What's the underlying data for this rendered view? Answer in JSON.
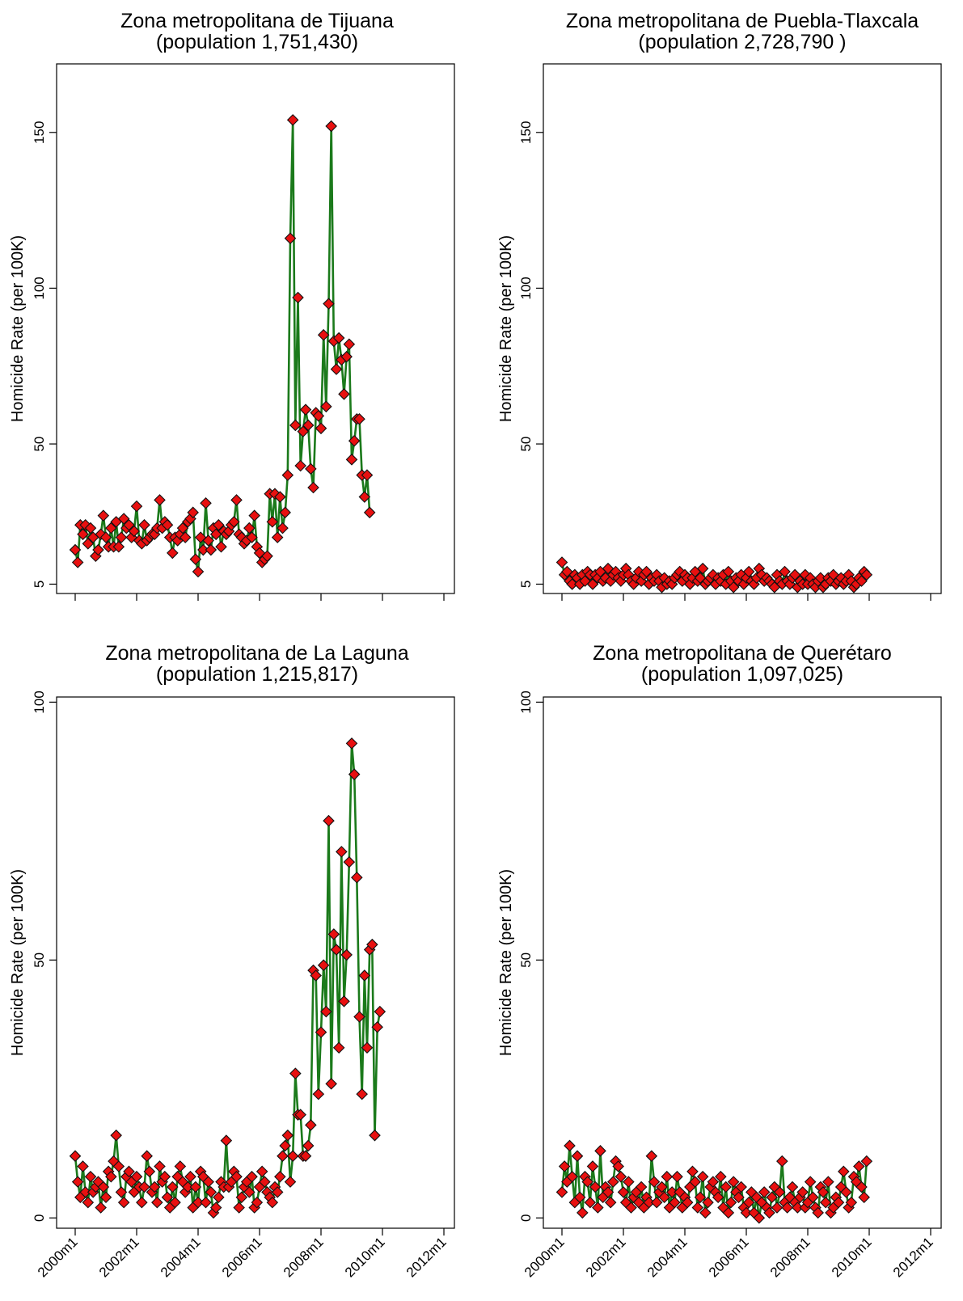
{
  "chart_data": [
    {
      "type": "line",
      "title": "Zona metropolitana de Tijuana",
      "subtitle": "(population  1,751,430)",
      "xlabel": "",
      "ylabel": "Homicide Rate (per 100K)",
      "x_tick_labels": [
        "2000m1",
        "2002m1",
        "2004m1",
        "2006m1",
        "2008m1",
        "2010m1",
        "2012m1"
      ],
      "y_ticks": [
        5,
        50,
        100,
        150
      ],
      "ylim": [
        2,
        172
      ],
      "x_start": "2000m1",
      "markers": "diamond",
      "grid": false,
      "colors": {
        "line": "#1b7a1b",
        "marker": "#e81010"
      },
      "series": [
        {
          "values": [
            16,
            12,
            24,
            21,
            24,
            18,
            23,
            20,
            14,
            16,
            21,
            27,
            20,
            17,
            23,
            17,
            25,
            17,
            20,
            26,
            23,
            24,
            20,
            22,
            30,
            19,
            18,
            24,
            19,
            20,
            21,
            21,
            23,
            32,
            23,
            25,
            24,
            20,
            15,
            20,
            19,
            21,
            23,
            20,
            25,
            26,
            28,
            13,
            9,
            20,
            16,
            31,
            19,
            16,
            23,
            21,
            24,
            17,
            22,
            21,
            22,
            24,
            25,
            32,
            21,
            20,
            18,
            19,
            23,
            20,
            27,
            17,
            15,
            12,
            13,
            14,
            34,
            25,
            34,
            20,
            33,
            23,
            28,
            40,
            116,
            154,
            56,
            97,
            43,
            54,
            61,
            56,
            42,
            36,
            60,
            59,
            55,
            85,
            62,
            95,
            152,
            83,
            74,
            84,
            77,
            66,
            78,
            82,
            45,
            51,
            58,
            58,
            40,
            33,
            40,
            28
          ]
        }
      ]
    },
    {
      "type": "line",
      "title": "Zona metropolitana de Puebla-Tlaxcala",
      "subtitle": "(population 2,728,790 )",
      "xlabel": "",
      "ylabel": "Homicide Rate (per 100K)",
      "x_tick_labels": [
        "2000m1",
        "2002m1",
        "2004m1",
        "2006m1",
        "2008m1",
        "2010m1",
        "2012m1"
      ],
      "y_ticks": [
        5,
        50,
        100,
        150
      ],
      "ylim": [
        2,
        172
      ],
      "x_start": "2000m1",
      "markers": "diamond",
      "grid": false,
      "colors": {
        "line": "#1b7a1b",
        "marker": "#e81010"
      },
      "series": [
        {
          "values": [
            12,
            8,
            9,
            6,
            5,
            8,
            7,
            5,
            8,
            6,
            9,
            8,
            5,
            8,
            7,
            9,
            6,
            7,
            10,
            6,
            8,
            9,
            7,
            6,
            8,
            10,
            8,
            6,
            5,
            7,
            9,
            6,
            8,
            9,
            5,
            7,
            6,
            8,
            6,
            4,
            7,
            5,
            6,
            5,
            7,
            8,
            9,
            6,
            8,
            7,
            5,
            7,
            9,
            6,
            7,
            10,
            5,
            6,
            7,
            8,
            5,
            7,
            6,
            8,
            5,
            9,
            6,
            4,
            7,
            6,
            8,
            5,
            7,
            9,
            6,
            5,
            7,
            10,
            8,
            6,
            7,
            6,
            5,
            4,
            8,
            6,
            5,
            9,
            6,
            5,
            7,
            8,
            4,
            6,
            5,
            8,
            5,
            7,
            5,
            4,
            6,
            7,
            4,
            5,
            7,
            6,
            8,
            5,
            6,
            7,
            5,
            6,
            8,
            6,
            4,
            5,
            7,
            6,
            9,
            8
          ]
        }
      ]
    },
    {
      "type": "line",
      "title": "Zona metropolitana de La Laguna",
      "subtitle": "(population 1,215,817)",
      "xlabel": "",
      "ylabel": "Homicide Rate (per 100K)",
      "x_tick_labels": [
        "2000m1",
        "2002m1",
        "2004m1",
        "2006m1",
        "2008m1",
        "2010m1",
        "2012m1"
      ],
      "y_ticks": [
        0,
        50,
        100
      ],
      "ylim": [
        -2,
        101
      ],
      "x_start": "2000m1",
      "markers": "diamond",
      "grid": false,
      "colors": {
        "line": "#1b7a1b",
        "marker": "#e81010"
      },
      "series": [
        {
          "values": [
            12,
            7,
            4,
            10,
            5,
            3,
            8,
            5,
            6,
            7,
            2,
            6,
            4,
            9,
            8,
            11,
            16,
            10,
            5,
            3,
            8,
            9,
            7,
            5,
            8,
            6,
            3,
            6,
            12,
            9,
            5,
            6,
            3,
            10,
            7,
            8,
            4,
            2,
            6,
            3,
            8,
            10,
            7,
            5,
            6,
            8,
            2,
            6,
            3,
            9,
            8,
            3,
            7,
            5,
            1,
            2,
            4,
            7,
            6,
            15,
            6,
            7,
            9,
            8,
            2,
            4,
            6,
            7,
            5,
            8,
            2,
            3,
            6,
            9,
            7,
            5,
            4,
            3,
            6,
            5,
            8,
            12,
            14,
            16,
            7,
            12,
            28,
            20,
            20,
            12,
            12,
            14,
            18,
            48,
            47,
            24,
            36,
            49,
            40,
            77,
            26,
            55,
            52,
            33,
            71,
            42,
            51,
            69,
            92,
            86,
            66,
            39,
            24,
            47,
            33,
            52,
            53,
            16,
            37,
            40
          ]
        }
      ]
    },
    {
      "type": "line",
      "title": "Zona metropolitana de Querétaro",
      "subtitle": "(population  1,097,025)",
      "xlabel": "",
      "ylabel": "Homicide Rate (per 100K)",
      "x_tick_labels": [
        "2000m1",
        "2002m1",
        "2004m1",
        "2006m1",
        "2008m1",
        "2010m1",
        "2012m1"
      ],
      "y_ticks": [
        0,
        50,
        100
      ],
      "ylim": [
        -2,
        101
      ],
      "x_start": "2000m1",
      "markers": "diamond",
      "grid": false,
      "colors": {
        "line": "#1b7a1b",
        "marker": "#e81010"
      },
      "series": [
        {
          "values": [
            5,
            10,
            7,
            14,
            8,
            3,
            12,
            4,
            1,
            8,
            7,
            3,
            10,
            6,
            2,
            13,
            4,
            6,
            5,
            3,
            7,
            11,
            10,
            8,
            5,
            3,
            7,
            2,
            4,
            5,
            3,
            6,
            2,
            4,
            3,
            12,
            7,
            3,
            5,
            6,
            4,
            8,
            2,
            5,
            3,
            8,
            5,
            2,
            4,
            3,
            6,
            9,
            7,
            2,
            4,
            8,
            1,
            3,
            6,
            7,
            5,
            4,
            8,
            2,
            6,
            1,
            3,
            7,
            5,
            4,
            6,
            2,
            1,
            3,
            5,
            1,
            4,
            0,
            3,
            5,
            2,
            1,
            4,
            6,
            2,
            5,
            11,
            3,
            2,
            4,
            6,
            3,
            2,
            4,
            5,
            2,
            3,
            7,
            4,
            2,
            1,
            6,
            5,
            3,
            7,
            1,
            2,
            4,
            3,
            6,
            9,
            5,
            2,
            3,
            8,
            7,
            10,
            6,
            4,
            11
          ]
        }
      ]
    }
  ]
}
